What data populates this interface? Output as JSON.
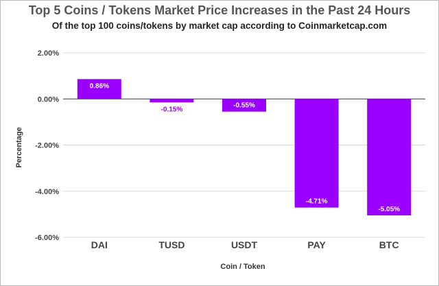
{
  "chart_data": {
    "type": "bar",
    "title": "Top 5 Coins / Tokens Market Price Increases in the Past 24 Hours",
    "subtitle": "Of the top 100 coins/tokens by market cap according to Coinmarketcap.com",
    "xlabel": "Coin / Token",
    "ylabel": "Percentage",
    "categories": [
      "DAI",
      "TUSD",
      "USDT",
      "PAY",
      "BTC"
    ],
    "values": [
      0.86,
      -0.15,
      -0.55,
      -4.71,
      -5.05
    ],
    "data_labels": [
      "0.86%",
      "-0.15%",
      "-0.55%",
      "-4.71%",
      "-5.05%"
    ],
    "yticks": [
      2,
      0,
      -2,
      -4,
      -6
    ],
    "ytick_labels": [
      "2.00%",
      "0.00%",
      "-2.00%",
      "-4.00%",
      "-6.00%"
    ],
    "ylim": [
      -6,
      2
    ],
    "grid": true,
    "bar_color": "#9900ff",
    "label_color_outside": "#9900ff",
    "label_color_inside": "#ffffff"
  }
}
